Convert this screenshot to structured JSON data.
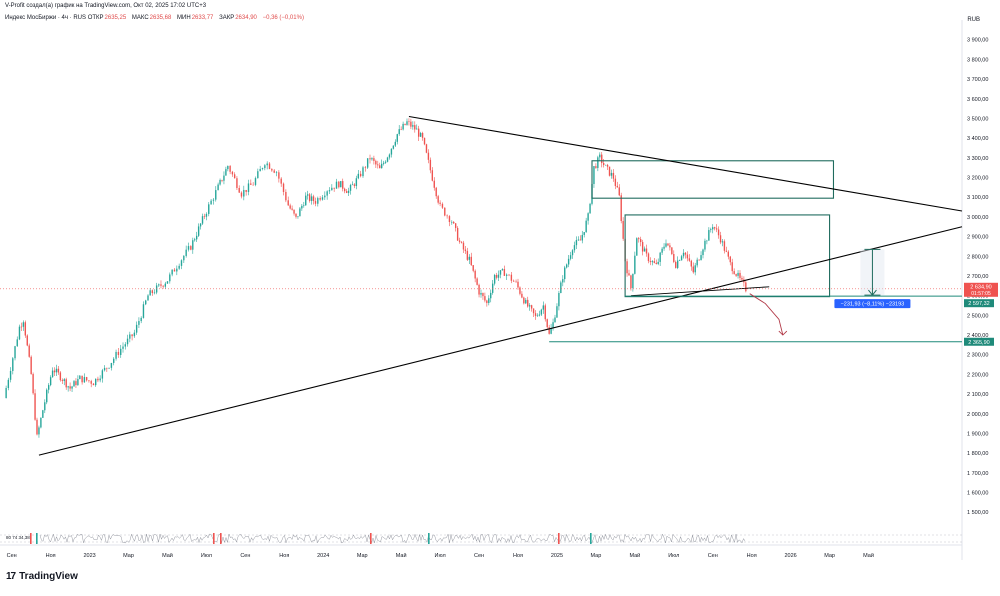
{
  "header": {
    "attribution": "V-Profit создал(а) график на TradingView.com, Окт 02, 2025 17:02 UTC+3",
    "symbol": "Индекс МосБиржи · 4ч · RUS",
    "ohlc": [
      {
        "label": "ОТКР",
        "value": "2635,25"
      },
      {
        "label": "МАКС",
        "value": "2635,68"
      },
      {
        "label": "МИН",
        "value": "2633,77"
      },
      {
        "label": "ЗАКР",
        "value": "2634,90"
      }
    ],
    "change": "−0,36 (−0,01%)",
    "currency": "RUB"
  },
  "branding": {
    "logo_mark": "17",
    "logo_text": "TradingView"
  },
  "oscillator": {
    "label": "80 74 34,38"
  },
  "colors": {
    "up": "#26a69a",
    "down": "#ef5350",
    "trend": "#000000",
    "box": "#1f6b5e",
    "level": "#1f8a7a",
    "arrow": "#b23a48",
    "measure": "#1f6b5e",
    "measure_label_bg": "#2962ff"
  },
  "chart_data": {
    "type": "candlestick",
    "title": "Индекс МосБиржи",
    "timeframe": "4ч",
    "ylim": [
      1420,
      4000
    ],
    "y_ticks": [
      1500,
      1600,
      1700,
      1800,
      1900,
      2000,
      2100,
      2200,
      2300,
      2400,
      2500,
      2600,
      2700,
      2800,
      2900,
      3000,
      3100,
      3200,
      3300,
      3400,
      3500,
      3600,
      3700,
      3800,
      3900
    ],
    "y_tick_labels": [
      "1 500,00",
      "1 600,00",
      "1 700,00",
      "1 800,00",
      "1 900,00",
      "2 000,00",
      "2 100,00",
      "2 200,00",
      "2 300,00",
      "2 400,00",
      "2 500,00",
      "2 600,00",
      "2 700,00",
      "2 800,00",
      "2 900,00",
      "3 000,00",
      "3 100,00",
      "3 200,00",
      "3 300,00",
      "3 400,00",
      "3 500,00",
      "3 600,00",
      "3 700,00",
      "3 800,00",
      "3 900,00"
    ],
    "x_ticks": [
      {
        "label": "Сен",
        "t": 0.0
      },
      {
        "label": "Ноя",
        "t": 2.0
      },
      {
        "label": "2023",
        "t": 4.0
      },
      {
        "label": "Мар",
        "t": 6.0
      },
      {
        "label": "Май",
        "t": 8.0
      },
      {
        "label": "Июл",
        "t": 10.0
      },
      {
        "label": "Сен",
        "t": 12.0
      },
      {
        "label": "Ноя",
        "t": 14.0
      },
      {
        "label": "2024",
        "t": 16.0
      },
      {
        "label": "Мар",
        "t": 18.0
      },
      {
        "label": "Май",
        "t": 20.0
      },
      {
        "label": "Июл",
        "t": 22.0
      },
      {
        "label": "Сен",
        "t": 24.0
      },
      {
        "label": "Ноя",
        "t": 26.0
      },
      {
        "label": "2025",
        "t": 28.0
      },
      {
        "label": "Мар",
        "t": 30.0
      },
      {
        "label": "Май",
        "t": 32.0
      },
      {
        "label": "Июл",
        "t": 34.0
      },
      {
        "label": "Сен",
        "t": 36.0
      },
      {
        "label": "Ноя",
        "t": 38.0
      },
      {
        "label": "2026",
        "t": 40.0
      },
      {
        "label": "Мар",
        "t": 42.0
      },
      {
        "label": "Май",
        "t": 44.0
      }
    ],
    "path": [
      [
        -0.4,
        2080
      ],
      [
        0.4,
        2440
      ],
      [
        0.6,
        2480
      ],
      [
        1.0,
        2200
      ],
      [
        1.3,
        1880
      ],
      [
        1.6,
        2020
      ],
      [
        2.1,
        2230
      ],
      [
        2.5,
        2190
      ],
      [
        3.0,
        2130
      ],
      [
        3.5,
        2180
      ],
      [
        4.2,
        2160
      ],
      [
        5.0,
        2250
      ],
      [
        5.6,
        2330
      ],
      [
        6.3,
        2410
      ],
      [
        7.0,
        2600
      ],
      [
        8.0,
        2680
      ],
      [
        8.6,
        2770
      ],
      [
        9.2,
        2850
      ],
      [
        9.6,
        2940
      ],
      [
        10.0,
        3030
      ],
      [
        10.6,
        3150
      ],
      [
        11.1,
        3260
      ],
      [
        11.8,
        3120
      ],
      [
        12.4,
        3170
      ],
      [
        13.0,
        3280
      ],
      [
        13.6,
        3230
      ],
      [
        14.2,
        3060
      ],
      [
        14.6,
        2990
      ],
      [
        15.1,
        3100
      ],
      [
        15.6,
        3080
      ],
      [
        16.2,
        3140
      ],
      [
        16.8,
        3170
      ],
      [
        17.3,
        3130
      ],
      [
        17.8,
        3200
      ],
      [
        18.4,
        3300
      ],
      [
        18.9,
        3240
      ],
      [
        19.4,
        3330
      ],
      [
        19.8,
        3420
      ],
      [
        20.3,
        3480
      ],
      [
        20.8,
        3440
      ],
      [
        21.1,
        3390
      ],
      [
        21.6,
        3200
      ],
      [
        22.0,
        3050
      ],
      [
        22.6,
        2980
      ],
      [
        23.0,
        2870
      ],
      [
        23.5,
        2780
      ],
      [
        24.0,
        2620
      ],
      [
        24.4,
        2560
      ],
      [
        24.8,
        2700
      ],
      [
        25.3,
        2720
      ],
      [
        25.9,
        2660
      ],
      [
        26.4,
        2560
      ],
      [
        26.9,
        2490
      ],
      [
        27.3,
        2550
      ],
      [
        27.6,
        2400
      ],
      [
        27.8,
        2460
      ],
      [
        28.3,
        2700
      ],
      [
        28.8,
        2850
      ],
      [
        29.2,
        2880
      ],
      [
        29.6,
        3000
      ],
      [
        29.9,
        3250
      ],
      [
        30.2,
        3300
      ],
      [
        30.5,
        3250
      ],
      [
        30.9,
        3200
      ],
      [
        31.2,
        3100
      ],
      [
        31.5,
        2780
      ],
      [
        31.8,
        2640
      ],
      [
        32.1,
        2900
      ],
      [
        32.6,
        2800
      ],
      [
        33.1,
        2750
      ],
      [
        33.6,
        2880
      ],
      [
        34.1,
        2760
      ],
      [
        34.5,
        2830
      ],
      [
        35.0,
        2720
      ],
      [
        35.5,
        2850
      ],
      [
        36.0,
        2960
      ],
      [
        36.4,
        2890
      ],
      [
        36.9,
        2760
      ],
      [
        37.4,
        2680
      ],
      [
        37.7,
        2635
      ]
    ],
    "last_price": 2634.9,
    "last_price_label": "2 634,90",
    "timer_label": "01:57:05",
    "levels": [
      {
        "name": "support",
        "value": 2597.32,
        "label": "2 597,32"
      },
      {
        "name": "target",
        "value": 2365.9,
        "label": "2 365,90"
      }
    ],
    "trendlines": [
      {
        "name": "descending-resistance",
        "from": [
          20.4,
          3510
        ],
        "to": [
          48.8,
          3030
        ]
      },
      {
        "name": "ascending-support",
        "from": [
          1.4,
          1790
        ],
        "to": [
          48.8,
          2950
        ]
      },
      {
        "name": "triangle-base",
        "from": [
          31.8,
          2600
        ],
        "to": [
          38.9,
          2645
        ]
      }
    ],
    "rectangles": [
      {
        "name": "upper-range-box",
        "t0": 29.8,
        "t1": 42.2,
        "v0": 3095,
        "v1": 3285
      },
      {
        "name": "lower-range-box",
        "t0": 31.5,
        "t1": 42.0,
        "v0": 2595,
        "v1": 3010
      }
    ],
    "forecast_arrow": [
      [
        37.9,
        2610
      ],
      [
        38.7,
        2560
      ],
      [
        39.4,
        2480
      ],
      [
        39.6,
        2400
      ]
    ],
    "measure": {
      "t": 44.2,
      "from": 2835,
      "to": 2603,
      "label": "−231,93 (−8,11%) −23193"
    }
  }
}
